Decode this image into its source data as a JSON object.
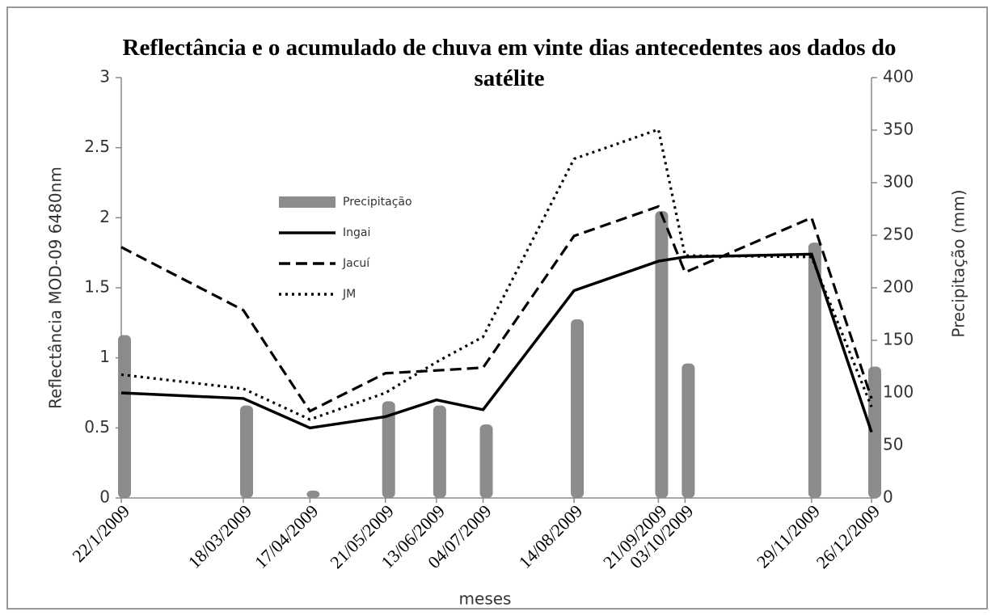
{
  "chart_data": {
    "type": "line",
    "title": "Reflectância e o acumulado de chuva em vinte dias antecedentes aos dados do satélite",
    "xlabel": "meses",
    "ylabel": "Reflectância MOD-09 6480nm",
    "y2label": "Precipitação (mm)",
    "x": [
      "22/1/2009",
      "18/03/2009",
      "17/04/2009",
      "21/05/2009",
      "13/06/2009",
      "04/07/2009",
      "14/08/2009",
      "21/09/2009",
      "03/10/2009",
      "29/11/2009",
      "26/12/2009"
    ],
    "ylim": [
      0,
      3
    ],
    "yticks": [
      0,
      0.5,
      1,
      1.5,
      2,
      2.5,
      3
    ],
    "y2lim": [
      0,
      400
    ],
    "y2ticks": [
      0,
      50,
      100,
      150,
      200,
      250,
      300,
      350,
      400
    ],
    "series": [
      {
        "name": "Precipitação",
        "type": "bar",
        "axis": "y2",
        "color": "#8c8c8c",
        "values": [
          155,
          88,
          7,
          92,
          88,
          70,
          170,
          273,
          128,
          243,
          125
        ]
      },
      {
        "name": "Ingai",
        "color": "#000000",
        "dash": "solid",
        "values": [
          0.75,
          0.71,
          0.5,
          0.58,
          0.7,
          0.63,
          1.48,
          1.69,
          1.72,
          1.74,
          0.47
        ]
      },
      {
        "name": "Jacuí",
        "color": "#000000",
        "dash": "dashed",
        "values": [
          1.79,
          1.34,
          0.62,
          0.89,
          0.91,
          0.93,
          1.87,
          2.08,
          1.61,
          2.0,
          0.71
        ]
      },
      {
        "name": "JM",
        "color": "#000000",
        "dash": "dotted",
        "values": [
          0.88,
          0.78,
          0.56,
          0.75,
          0.97,
          1.15,
          2.42,
          2.63,
          1.73,
          1.72,
          0.65
        ]
      }
    ]
  }
}
